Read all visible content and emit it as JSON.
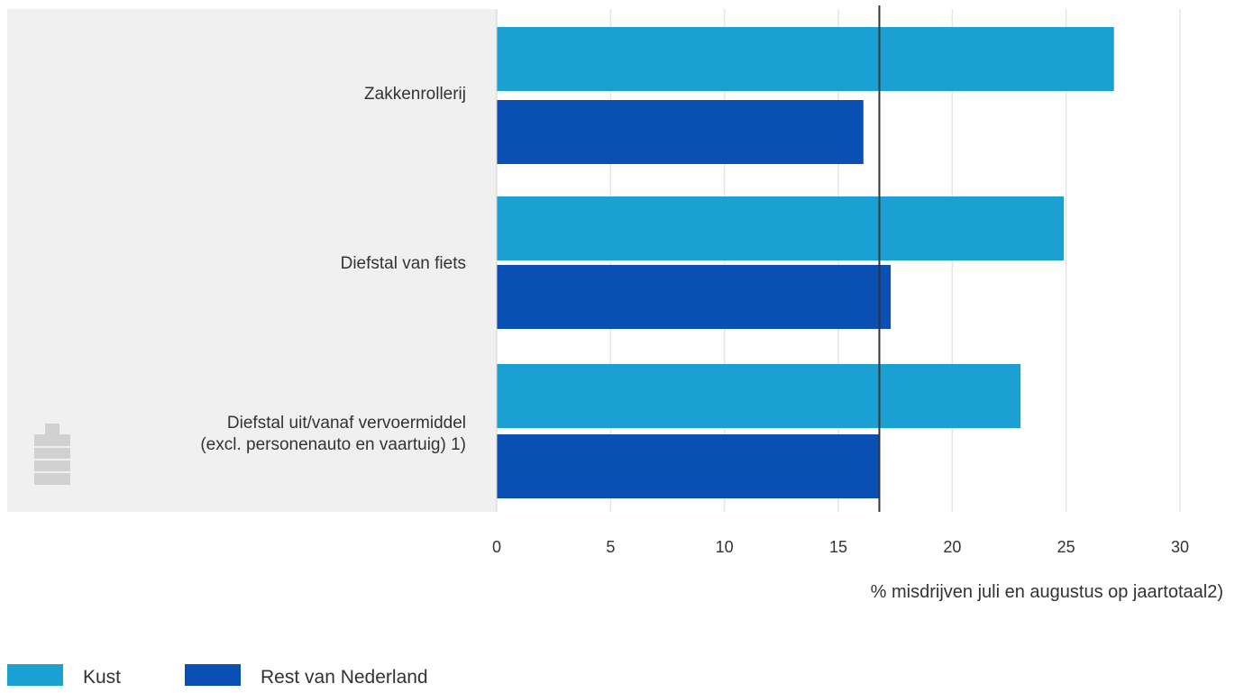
{
  "chart_data": {
    "type": "bar",
    "orientation": "horizontal",
    "categories": [
      [
        "Zakkenrollerij"
      ],
      [
        "Diefstal van fiets"
      ],
      [
        "Diefstal uit/vanaf vervoermiddel",
        "(excl. personenauto en vaartuig) 1)"
      ]
    ],
    "series": [
      {
        "name": "Kust",
        "color": "#1aa0d2",
        "values": [
          27.1,
          24.9,
          23.0
        ]
      },
      {
        "name": "Rest van Nederland",
        "color": "#0a4fb4",
        "values": [
          16.1,
          17.3,
          16.8
        ]
      }
    ],
    "reference_line": 16.8,
    "xticks": [
      "0",
      "5",
      "10",
      "15",
      "20",
      "25",
      "30"
    ],
    "xlim": [
      0,
      30
    ],
    "xlabel": "% misdrijven juli en augustus op jaartotaal2)",
    "grid": true,
    "legend": "bottom-left"
  },
  "colors": {
    "label_panel": "#f0f0f0",
    "gridline": "#e6e6e6",
    "reference_line": "#333333"
  },
  "icons": {
    "watermark": "cbs-logo-icon"
  }
}
